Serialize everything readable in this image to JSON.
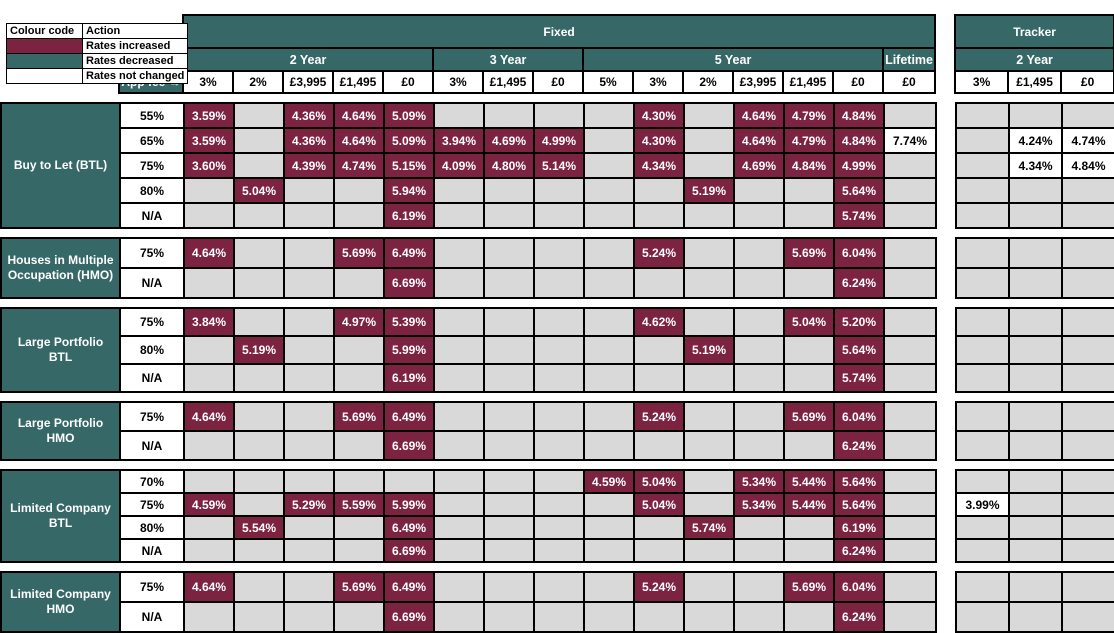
{
  "colors": {
    "rates_increased": "#7c2342",
    "rates_decreased": "#366868",
    "rates_not_changed": "#ffffff",
    "empty_cell": "#d9d9d9",
    "header_teal": "#366868"
  },
  "legend": {
    "colour_header": "Colour code",
    "action_header": "Action",
    "items": [
      {
        "label": "Rates increased",
        "state": "inc"
      },
      {
        "label": "Rates decreased",
        "state": "dec"
      },
      {
        "label": "Rates not changed",
        "state": "same"
      }
    ]
  },
  "header": {
    "fixed": "Fixed",
    "tracker": "Tracker",
    "app_fee": "App fee →",
    "fixed_groups": [
      {
        "label": "2 Year",
        "span": 5
      },
      {
        "label": "3 Year",
        "span": 3
      },
      {
        "label": "5 Year",
        "span": 6
      },
      {
        "label": "Lifetime",
        "span": 1
      }
    ],
    "tracker_group": {
      "label": "2 Year",
      "span": 3
    },
    "fixed_fees": [
      "3%",
      "2%",
      "£3,995",
      "£1,495",
      "£0",
      "3%",
      "£1,495",
      "£0",
      "5%",
      "3%",
      "2%",
      "£3,995",
      "£1,495",
      "£0",
      "£0"
    ],
    "tracker_fees": [
      "3%",
      "£1,495",
      "£0"
    ]
  },
  "sections": [
    {
      "name": "Buy to Let (BTL)",
      "rows": [
        {
          "ltv": "55%",
          "cells": [
            [
              "3.59%",
              "inc"
            ],
            null,
            [
              "4.36%",
              "inc"
            ],
            [
              "4.64%",
              "inc"
            ],
            [
              "5.09%",
              "inc"
            ],
            null,
            null,
            null,
            null,
            [
              "4.30%",
              "inc"
            ],
            null,
            [
              "4.64%",
              "inc"
            ],
            [
              "4.79%",
              "inc"
            ],
            [
              "4.84%",
              "inc"
            ],
            null,
            null,
            null,
            null
          ]
        },
        {
          "ltv": "65%",
          "cells": [
            [
              "3.59%",
              "inc"
            ],
            null,
            [
              "4.36%",
              "inc"
            ],
            [
              "4.64%",
              "inc"
            ],
            [
              "5.09%",
              "inc"
            ],
            [
              "3.94%",
              "inc"
            ],
            [
              "4.69%",
              "inc"
            ],
            [
              "4.99%",
              "inc"
            ],
            null,
            [
              "4.30%",
              "inc"
            ],
            null,
            [
              "4.64%",
              "inc"
            ],
            [
              "4.79%",
              "inc"
            ],
            [
              "4.84%",
              "inc"
            ],
            [
              "7.74%",
              "same"
            ],
            null,
            [
              "4.24%",
              "same"
            ],
            [
              "4.74%",
              "same"
            ]
          ]
        },
        {
          "ltv": "75%",
          "cells": [
            [
              "3.60%",
              "inc"
            ],
            null,
            [
              "4.39%",
              "inc"
            ],
            [
              "4.74%",
              "inc"
            ],
            [
              "5.15%",
              "inc"
            ],
            [
              "4.09%",
              "inc"
            ],
            [
              "4.80%",
              "inc"
            ],
            [
              "5.14%",
              "inc"
            ],
            null,
            [
              "4.34%",
              "inc"
            ],
            null,
            [
              "4.69%",
              "inc"
            ],
            [
              "4.84%",
              "inc"
            ],
            [
              "4.99%",
              "inc"
            ],
            null,
            null,
            [
              "4.34%",
              "same"
            ],
            [
              "4.84%",
              "same"
            ]
          ]
        },
        {
          "ltv": "80%",
          "cells": [
            null,
            [
              "5.04%",
              "inc"
            ],
            null,
            null,
            [
              "5.94%",
              "inc"
            ],
            null,
            null,
            null,
            null,
            null,
            [
              "5.19%",
              "inc"
            ],
            null,
            null,
            [
              "5.64%",
              "inc"
            ],
            null,
            null,
            null,
            null
          ]
        },
        {
          "ltv": "N/A",
          "cells": [
            null,
            null,
            null,
            null,
            [
              "6.19%",
              "inc"
            ],
            null,
            null,
            null,
            null,
            null,
            null,
            null,
            null,
            [
              "5.74%",
              "inc"
            ],
            null,
            null,
            null,
            null
          ]
        }
      ]
    },
    {
      "name": "Houses in Multiple Occupation (HMO)",
      "rows": [
        {
          "ltv": "75%",
          "cells": [
            [
              "4.64%",
              "inc"
            ],
            null,
            null,
            [
              "5.69%",
              "inc"
            ],
            [
              "6.49%",
              "inc"
            ],
            null,
            null,
            null,
            null,
            [
              "5.24%",
              "inc"
            ],
            null,
            null,
            [
              "5.69%",
              "inc"
            ],
            [
              "6.04%",
              "inc"
            ],
            null,
            null,
            null,
            null
          ]
        },
        {
          "ltv": "N/A",
          "cells": [
            null,
            null,
            null,
            null,
            [
              "6.69%",
              "inc"
            ],
            null,
            null,
            null,
            null,
            null,
            null,
            null,
            null,
            [
              "6.24%",
              "inc"
            ],
            null,
            null,
            null,
            null
          ]
        }
      ]
    },
    {
      "name": "Large Portfolio BTL",
      "rows": [
        {
          "ltv": "75%",
          "cells": [
            [
              "3.84%",
              "inc"
            ],
            null,
            null,
            [
              "4.97%",
              "inc"
            ],
            [
              "5.39%",
              "inc"
            ],
            null,
            null,
            null,
            null,
            [
              "4.62%",
              "inc"
            ],
            null,
            null,
            [
              "5.04%",
              "inc"
            ],
            [
              "5.20%",
              "inc"
            ],
            null,
            null,
            null,
            null
          ]
        },
        {
          "ltv": "80%",
          "cells": [
            null,
            [
              "5.19%",
              "inc"
            ],
            null,
            null,
            [
              "5.99%",
              "inc"
            ],
            null,
            null,
            null,
            null,
            null,
            [
              "5.19%",
              "inc"
            ],
            null,
            null,
            [
              "5.64%",
              "inc"
            ],
            null,
            null,
            null,
            null
          ]
        },
        {
          "ltv": "N/A",
          "cells": [
            null,
            null,
            null,
            null,
            [
              "6.19%",
              "inc"
            ],
            null,
            null,
            null,
            null,
            null,
            null,
            null,
            null,
            [
              "5.74%",
              "inc"
            ],
            null,
            null,
            null,
            null
          ]
        }
      ]
    },
    {
      "name": "Large Portfolio HMO",
      "rows": [
        {
          "ltv": "75%",
          "cells": [
            [
              "4.64%",
              "inc"
            ],
            null,
            null,
            [
              "5.69%",
              "inc"
            ],
            [
              "6.49%",
              "inc"
            ],
            null,
            null,
            null,
            null,
            [
              "5.24%",
              "inc"
            ],
            null,
            null,
            [
              "5.69%",
              "inc"
            ],
            [
              "6.04%",
              "inc"
            ],
            null,
            null,
            null,
            null
          ]
        },
        {
          "ltv": "N/A",
          "cells": [
            null,
            null,
            null,
            null,
            [
              "6.69%",
              "inc"
            ],
            null,
            null,
            null,
            null,
            null,
            null,
            null,
            null,
            [
              "6.24%",
              "inc"
            ],
            null,
            null,
            null,
            null
          ]
        }
      ]
    },
    {
      "name": "Limited Company BTL",
      "rows": [
        {
          "ltv": "70%",
          "cells": [
            null,
            null,
            null,
            null,
            null,
            null,
            null,
            null,
            [
              "4.59%",
              "inc"
            ],
            [
              "5.04%",
              "inc"
            ],
            null,
            [
              "5.34%",
              "inc"
            ],
            [
              "5.44%",
              "inc"
            ],
            [
              "5.64%",
              "inc"
            ],
            null,
            null,
            null,
            null
          ]
        },
        {
          "ltv": "75%",
          "cells": [
            [
              "4.59%",
              "inc"
            ],
            null,
            [
              "5.29%",
              "inc"
            ],
            [
              "5.59%",
              "inc"
            ],
            [
              "5.99%",
              "inc"
            ],
            null,
            null,
            null,
            null,
            [
              "5.04%",
              "inc"
            ],
            null,
            [
              "5.34%",
              "inc"
            ],
            [
              "5.44%",
              "inc"
            ],
            [
              "5.64%",
              "inc"
            ],
            null,
            [
              "3.99%",
              "same"
            ],
            null,
            null
          ]
        },
        {
          "ltv": "80%",
          "cells": [
            null,
            [
              "5.54%",
              "inc"
            ],
            null,
            null,
            [
              "6.49%",
              "inc"
            ],
            null,
            null,
            null,
            null,
            null,
            [
              "5.74%",
              "inc"
            ],
            null,
            null,
            [
              "6.19%",
              "inc"
            ],
            null,
            null,
            null,
            null
          ]
        },
        {
          "ltv": "N/A",
          "cells": [
            null,
            null,
            null,
            null,
            [
              "6.69%",
              "inc"
            ],
            null,
            null,
            null,
            null,
            null,
            null,
            null,
            null,
            [
              "6.24%",
              "inc"
            ],
            null,
            null,
            null,
            null
          ]
        }
      ]
    },
    {
      "name": "Limited Company HMO",
      "rows": [
        {
          "ltv": "75%",
          "cells": [
            [
              "4.64%",
              "inc"
            ],
            null,
            null,
            [
              "5.69%",
              "inc"
            ],
            [
              "6.49%",
              "inc"
            ],
            null,
            null,
            null,
            null,
            [
              "5.24%",
              "inc"
            ],
            null,
            null,
            [
              "5.69%",
              "inc"
            ],
            [
              "6.04%",
              "inc"
            ],
            null,
            null,
            null,
            null
          ]
        },
        {
          "ltv": "N/A",
          "cells": [
            null,
            null,
            null,
            null,
            [
              "6.69%",
              "inc"
            ],
            null,
            null,
            null,
            null,
            null,
            null,
            null,
            null,
            [
              "6.24%",
              "inc"
            ],
            null,
            null,
            null,
            null
          ]
        }
      ]
    }
  ]
}
